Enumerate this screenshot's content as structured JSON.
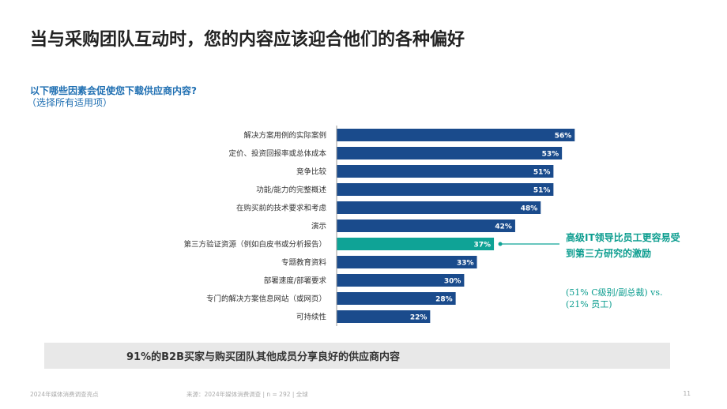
{
  "title": "当与采购团队互动时，您的内容应该迎合他们的各种偏好",
  "question": "以下哪些因素会促使您下载供应商内容?",
  "question_note": "（选择所有适用项）",
  "colors": {
    "bar": "#1a4b8c",
    "highlight": "#0fa396",
    "accent_text": "#0c9d8f",
    "question": "#1f6fb2"
  },
  "chart_data": {
    "type": "bar",
    "orientation": "horizontal",
    "title": "以下哪些因素会促使您下载供应商内容?",
    "categories": [
      "解决方案用例的实际案例",
      "定价、投资回报率或总体成本",
      "竞争比较",
      "功能/能力的完整概述",
      "在购买前的技术要求和考虑",
      "演示",
      "第三方验证资源（例如白皮书或分析报告）",
      "专题教育资料",
      "部署速度/部署要求",
      "专门的解决方案信息网站（或网页）",
      "可持续性"
    ],
    "values": [
      56,
      53,
      51,
      51,
      48,
      42,
      37,
      33,
      30,
      28,
      22
    ],
    "value_labels": [
      "56%",
      "53%",
      "51%",
      "51%",
      "48%",
      "42%",
      "37%",
      "33%",
      "30%",
      "28%",
      "22%"
    ],
    "highlight_index": 6,
    "xlim": [
      0,
      100
    ],
    "grid": false,
    "unit": "%"
  },
  "callout": {
    "headline": "高级IT领导比员工更容易受到第三方研究的激励",
    "detail": "(51% C级别/副总裁) vs. (21% 员工)"
  },
  "banner": "91%的B2B买家与购买团队其他成员分享良好的供应商内容",
  "footer": {
    "report": "2024年媒体消费调查亮点",
    "source": "来源：2024年媒体消费调查 | n = 292 | 全球",
    "page": "11"
  }
}
